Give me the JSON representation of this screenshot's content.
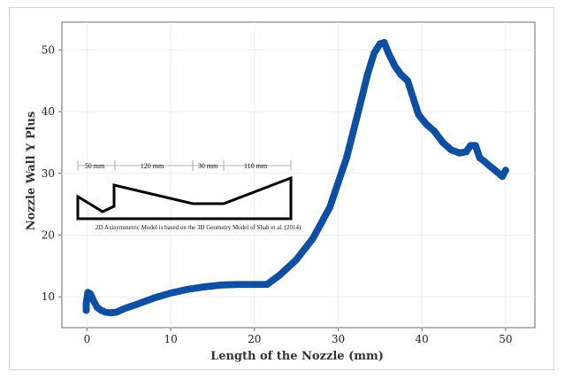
{
  "chart_data": {
    "type": "scatter",
    "xlabel": "Length of the Nozzle (mm)",
    "ylabel": "Nozzle Wall Y Plus",
    "xlim": [
      -3,
      53.5
    ],
    "ylim": [
      5,
      54.5
    ],
    "xticks": [
      "0",
      "10",
      "20",
      "30",
      "40",
      "50"
    ],
    "yticks": [
      "10",
      "20",
      "30",
      "40",
      "50"
    ],
    "grid": true,
    "marker_color": "#0D4FA3",
    "series": [
      {
        "x": [
          -0.1,
          -0.1,
          0.1,
          0.4,
          0.8,
          1.2,
          1.7,
          2.2,
          2.8,
          3.5,
          4.5,
          6,
          8,
          10,
          12,
          14,
          16,
          18,
          20,
          21.5,
          23,
          25,
          27,
          29,
          31,
          32.5,
          33.5,
          34.3,
          35,
          35.5,
          36,
          36.8,
          37.5,
          38.3,
          39,
          39.6,
          40.5,
          41.5,
          42.5,
          43.5,
          44.5,
          45.3,
          45.8,
          46.4,
          46.9,
          47.4,
          48,
          49,
          49.6,
          50
        ],
        "y": [
          7.8,
          8.8,
          10.7,
          10.5,
          9.3,
          8.3,
          7.8,
          7.5,
          7.4,
          7.5,
          8.1,
          8.8,
          9.8,
          10.6,
          11.2,
          11.6,
          11.9,
          12,
          12,
          12,
          13.5,
          16,
          19.5,
          24.5,
          32.5,
          40.5,
          46,
          49.5,
          51,
          51.2,
          49.5,
          47.3,
          46,
          45,
          42,
          39.5,
          38,
          36.8,
          35,
          33.8,
          33.3,
          33.5,
          34.5,
          34.5,
          32.5,
          32,
          31.3,
          30.2,
          29.5,
          30.5
        ]
      }
    ],
    "inset": {
      "dimensions": [
        "50 mm",
        "120 mm",
        "30 mm",
        "110 mm"
      ],
      "caption": "2D Axisymmetric Model is based on the 3D Geometry Model of Shah et al. (2014)"
    }
  }
}
